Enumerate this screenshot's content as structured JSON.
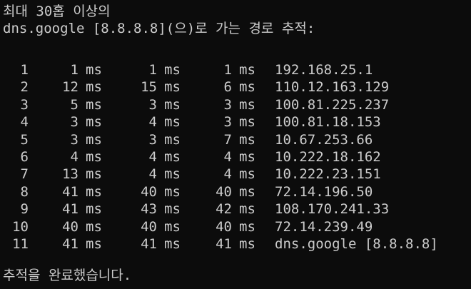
{
  "console": {
    "header_line1": "최대 30홉 이상의",
    "header_line2": "dns.google [8.8.8.8](으)로 가는 경로 추적:",
    "unit": "ms",
    "hops": [
      {
        "hop": "1",
        "rtt1": "1",
        "rtt2": "1",
        "rtt3": "1",
        "host": "192.168.25.1"
      },
      {
        "hop": "2",
        "rtt1": "12",
        "rtt2": "15",
        "rtt3": "6",
        "host": "110.12.163.129"
      },
      {
        "hop": "3",
        "rtt1": "5",
        "rtt2": "3",
        "rtt3": "3",
        "host": "100.81.225.237"
      },
      {
        "hop": "4",
        "rtt1": "3",
        "rtt2": "4",
        "rtt3": "3",
        "host": "100.81.18.153"
      },
      {
        "hop": "5",
        "rtt1": "3",
        "rtt2": "3",
        "rtt3": "7",
        "host": "10.67.253.66"
      },
      {
        "hop": "6",
        "rtt1": "4",
        "rtt2": "4",
        "rtt3": "4",
        "host": "10.222.18.162"
      },
      {
        "hop": "7",
        "rtt1": "13",
        "rtt2": "4",
        "rtt3": "4",
        "host": "10.222.23.151"
      },
      {
        "hop": "8",
        "rtt1": "41",
        "rtt2": "40",
        "rtt3": "40",
        "host": "72.14.196.50"
      },
      {
        "hop": "9",
        "rtt1": "41",
        "rtt2": "43",
        "rtt3": "42",
        "host": "108.170.241.33"
      },
      {
        "hop": "10",
        "rtt1": "40",
        "rtt2": "40",
        "rtt3": "40",
        "host": "72.14.239.49"
      },
      {
        "hop": "11",
        "rtt1": "41",
        "rtt2": "41",
        "rtt3": "41",
        "host": "dns.google [8.8.8.8]"
      }
    ],
    "footer": "추적을 완료했습니다."
  },
  "colors": {
    "background": "#0c0c0c",
    "text": "#cccccc"
  }
}
